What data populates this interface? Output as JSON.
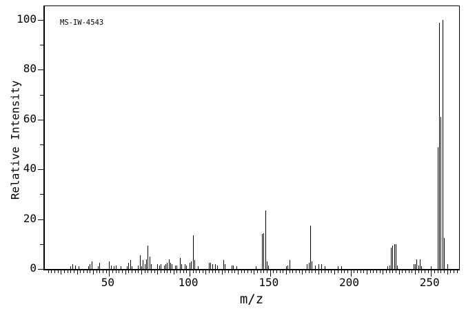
{
  "annotation": {
    "label": "MS-IW-4543"
  },
  "axes": {
    "x": {
      "title": "m/z",
      "range": [
        10,
        267.5
      ],
      "labeled_ticks": [
        50,
        100,
        150,
        200,
        250
      ],
      "minor_tick_step": 2,
      "medium_tick_step": 10
    },
    "y": {
      "title": "Relative Intensity",
      "range": [
        0,
        100
      ],
      "labeled_ticks": [
        0,
        20,
        40,
        60,
        80,
        100
      ],
      "minor_ticks": [
        10,
        30,
        50,
        70,
        90
      ]
    }
  },
  "colors": {
    "foreground": "#000000",
    "background": "#ffffff"
  },
  "chart_data": {
    "type": "bar",
    "subtype": "mass-spectrum-stick-plot",
    "title": "",
    "annotation": "MS-IW-4543",
    "xlabel": "m/z",
    "ylabel": "Relative Intensity",
    "xlim": [
      10,
      267.5
    ],
    "ylim": [
      0,
      100
    ],
    "grid": false,
    "legend": false,
    "peaks": [
      [
        26,
        1
      ],
      [
        27,
        2
      ],
      [
        29,
        1.5
      ],
      [
        31,
        1
      ],
      [
        37,
        1
      ],
      [
        38,
        2
      ],
      [
        39,
        3
      ],
      [
        43,
        1
      ],
      [
        44,
        2.5
      ],
      [
        50,
        3
      ],
      [
        51,
        1.5
      ],
      [
        53,
        1
      ],
      [
        54,
        1.3
      ],
      [
        57,
        1
      ],
      [
        61,
        1
      ],
      [
        62,
        2.5
      ],
      [
        63,
        3.5
      ],
      [
        64,
        1
      ],
      [
        68,
        1.5
      ],
      [
        69,
        5.5
      ],
      [
        70,
        1
      ],
      [
        71,
        3.5
      ],
      [
        72,
        2
      ],
      [
        73,
        4
      ],
      [
        74,
        9.5
      ],
      [
        75,
        5
      ],
      [
        76,
        2
      ],
      [
        80,
        2
      ],
      [
        81,
        1.5
      ],
      [
        82,
        2
      ],
      [
        84,
        1.5
      ],
      [
        85,
        2
      ],
      [
        86,
        2.5
      ],
      [
        87,
        4
      ],
      [
        88,
        2.5
      ],
      [
        89,
        2
      ],
      [
        91,
        1.5
      ],
      [
        92,
        1.5
      ],
      [
        94,
        4.5
      ],
      [
        95,
        2
      ],
      [
        97,
        2
      ],
      [
        98,
        1.5
      ],
      [
        100,
        2.5
      ],
      [
        101,
        3
      ],
      [
        102,
        13.5
      ],
      [
        103,
        3.5
      ],
      [
        105,
        1
      ],
      [
        112,
        2.5
      ],
      [
        113,
        2.5
      ],
      [
        114,
        2
      ],
      [
        116,
        2
      ],
      [
        117,
        1.5
      ],
      [
        121,
        3.5
      ],
      [
        122,
        2
      ],
      [
        126,
        1.5
      ],
      [
        127,
        1.5
      ],
      [
        129,
        1
      ],
      [
        141,
        1
      ],
      [
        145,
        14
      ],
      [
        146,
        14.5
      ],
      [
        147,
        23.5
      ],
      [
        148,
        3
      ],
      [
        149,
        1.5
      ],
      [
        160,
        1
      ],
      [
        161,
        1.5
      ],
      [
        162,
        3.5
      ],
      [
        173,
        2
      ],
      [
        174,
        2.5
      ],
      [
        175,
        17.5
      ],
      [
        176,
        3
      ],
      [
        178,
        1.5
      ],
      [
        180,
        2
      ],
      [
        182,
        2
      ],
      [
        184,
        1
      ],
      [
        192,
        1
      ],
      [
        194,
        1
      ],
      [
        223,
        1
      ],
      [
        224,
        1.5
      ],
      [
        225,
        8.5
      ],
      [
        226,
        9.5
      ],
      [
        227,
        10
      ],
      [
        228,
        10
      ],
      [
        229,
        1.5
      ],
      [
        239,
        2
      ],
      [
        240,
        2
      ],
      [
        241,
        4
      ],
      [
        242,
        1.5
      ],
      [
        243,
        4
      ],
      [
        244,
        1
      ],
      [
        250,
        1
      ],
      [
        254,
        49
      ],
      [
        255,
        99
      ],
      [
        256,
        61
      ],
      [
        257,
        100
      ],
      [
        258,
        12.5
      ],
      [
        260,
        2
      ]
    ]
  }
}
